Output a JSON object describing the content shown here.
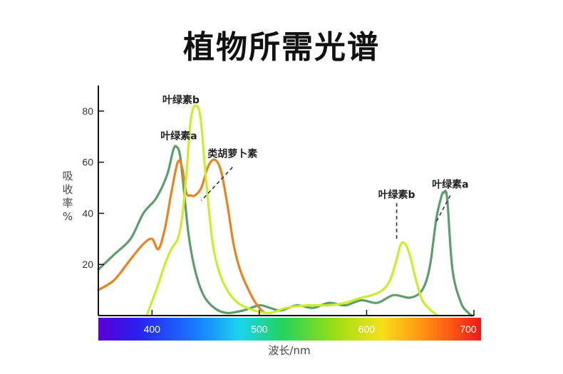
{
  "chart_data": {
    "type": "line",
    "title": "植物所需光谱",
    "xlabel": "波长/nm",
    "ylabel": "吸收率%",
    "xlim": [
      350,
      700
    ],
    "ylim": [
      0,
      90
    ],
    "x_ticks": [
      400,
      500,
      600,
      700
    ],
    "y_ticks": [
      20,
      40,
      60,
      80
    ],
    "grid": false,
    "spectrum_band": true,
    "series": [
      {
        "name": "叶绿素a",
        "color": "#5c9e6e",
        "x": [
          350,
          365,
          380,
          392,
          404,
          414,
          420,
          423,
          426,
          429,
          434,
          440,
          448,
          458,
          470,
          485,
          500,
          510,
          520,
          535,
          550,
          565,
          580,
          595,
          610,
          625,
          640,
          650,
          656,
          660,
          665,
          670,
          672,
          675,
          680,
          688,
          695,
          698
        ],
        "y": [
          18,
          24,
          30,
          40,
          46,
          55,
          65,
          66,
          63,
          52,
          32,
          18,
          8,
          3,
          1,
          2,
          4,
          3,
          2,
          4,
          3,
          5,
          4,
          6,
          5,
          8,
          7,
          9,
          14,
          22,
          38,
          47,
          48,
          46,
          18,
          5,
          1,
          0
        ]
      },
      {
        "name": "类胡萝卜素",
        "color": "#e8841f",
        "x": [
          350,
          365,
          380,
          392,
          400,
          406,
          412,
          418,
          424,
          428,
          432,
          436,
          440,
          446,
          452,
          458,
          464,
          470,
          476,
          482,
          490,
          498,
          505
        ],
        "y": [
          10,
          14,
          22,
          28,
          30,
          26,
          34,
          48,
          60,
          58,
          48,
          47,
          47,
          50,
          58,
          61,
          57,
          44,
          28,
          18,
          10,
          4,
          1
        ]
      },
      {
        "name": "叶绿素b",
        "color": "#ccee2a",
        "x": [
          395,
          404,
          412,
          418,
          424,
          428,
          432,
          436,
          440,
          445,
          450,
          456,
          462,
          470,
          480,
          495,
          510,
          525,
          545,
          565,
          580,
          595,
          605,
          615,
          622,
          628,
          632,
          636,
          640,
          646,
          652,
          660,
          666
        ],
        "y": [
          0,
          10,
          20,
          26,
          30,
          38,
          55,
          76,
          82,
          78,
          55,
          30,
          18,
          10,
          5,
          2,
          1,
          3,
          4,
          4,
          5,
          7,
          8,
          10,
          14,
          22,
          28,
          28,
          24,
          14,
          6,
          2,
          0
        ]
      }
    ],
    "annotations": [
      {
        "text": "叶绿素a",
        "x": 425,
        "y": 69
      },
      {
        "text": "叶绿素b",
        "x": 427,
        "y": 83
      },
      {
        "text": "类胡萝卜素",
        "x": 475,
        "y": 62
      },
      {
        "text": "叶绿素b",
        "x": 628,
        "y": 46
      },
      {
        "text": "叶绿素a",
        "x": 678,
        "y": 50
      }
    ],
    "spectrum_labels": [
      "400",
      "500",
      "600",
      "700"
    ]
  }
}
